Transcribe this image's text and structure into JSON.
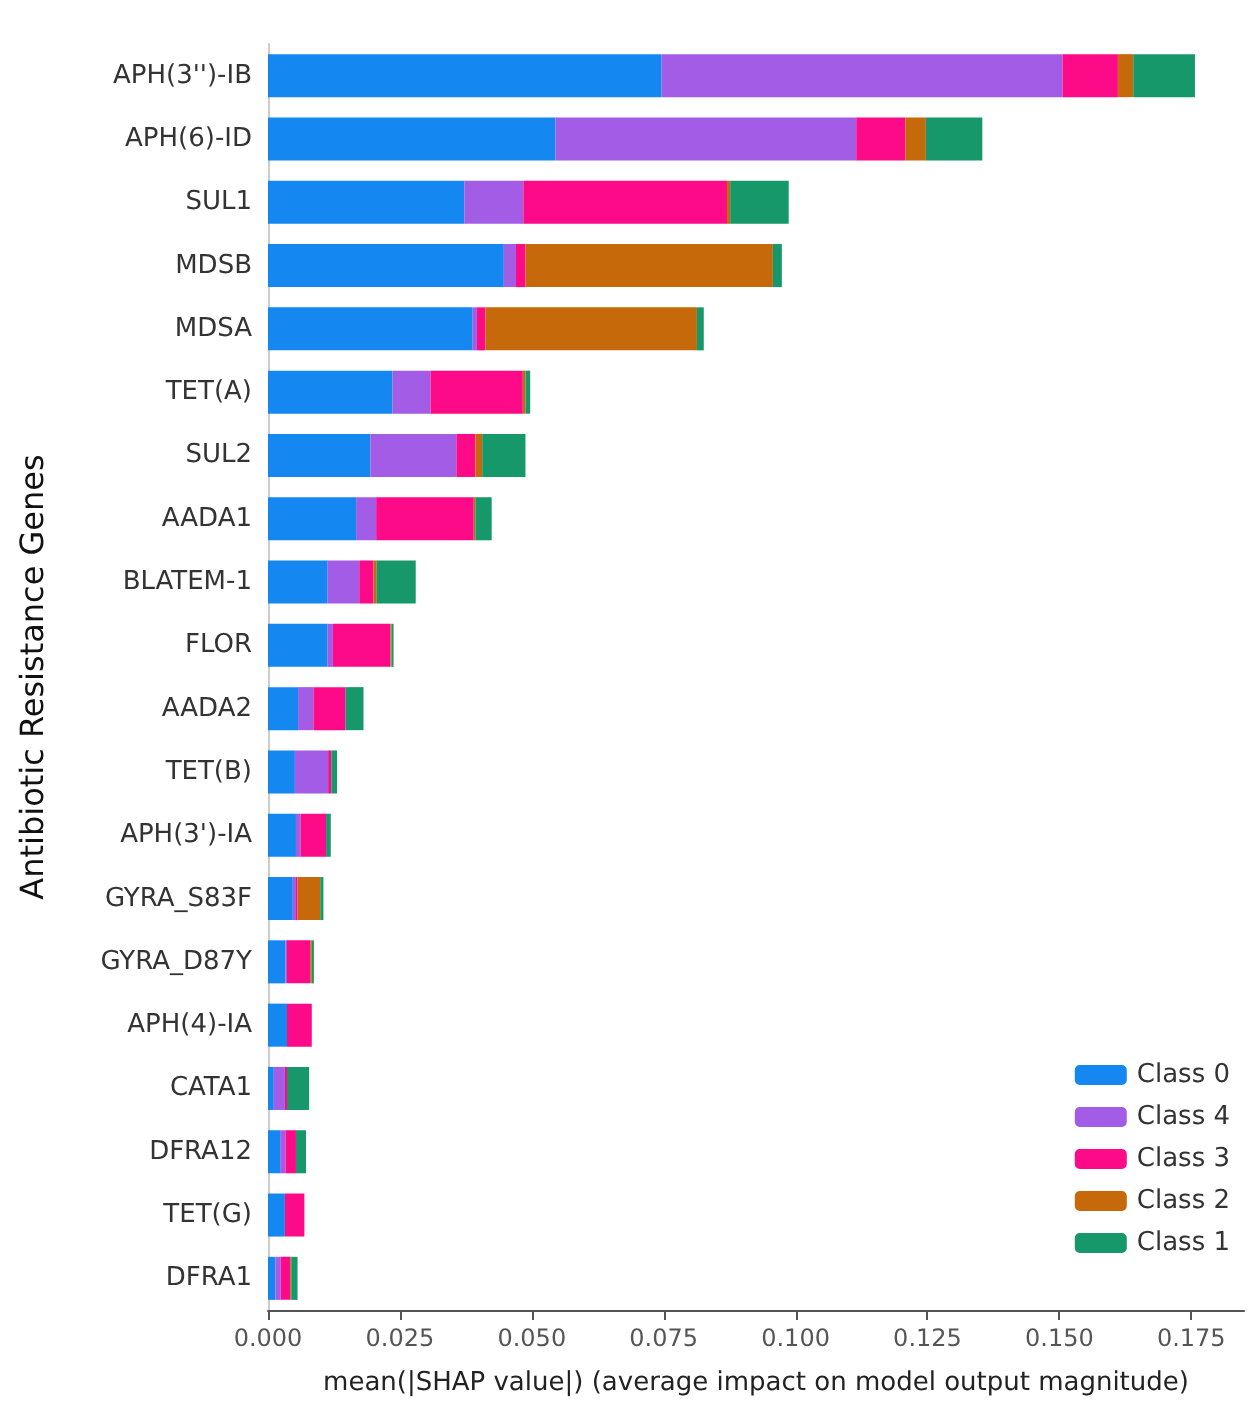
{
  "chart_data": {
    "type": "bar",
    "orientation": "horizontal",
    "stacked": true,
    "ylabel": "Antibiotic Resistance Genes",
    "xlabel": "mean(|SHAP value|) (average impact on model output magnitude)",
    "categories": [
      "APH(3'')-IB",
      "APH(6)-ID",
      "SUL1",
      "MDSB",
      "MDSA",
      "TET(A)",
      "SUL2",
      "AADA1",
      "BLATEM-1",
      "FLOR",
      "AADA2",
      "TET(B)",
      "APH(3')-IA",
      "GYRA_S83F",
      "GYRA_D87Y",
      "APH(4)-IA",
      "CATA1",
      "DFRA12",
      "TET(G)",
      "DFRA1"
    ],
    "series": [
      {
        "name": "Class 0",
        "color": "#1488f0",
        "values": [
          0.0746,
          0.0545,
          0.0372,
          0.0447,
          0.0388,
          0.0236,
          0.0194,
          0.0167,
          0.0113,
          0.0113,
          0.0057,
          0.0051,
          0.0053,
          0.0047,
          0.0033,
          0.0036,
          0.0011,
          0.0023,
          0.0032,
          0.0014
        ]
      },
      {
        "name": "Class 4",
        "color": "#a35ce6",
        "values": [
          0.076,
          0.057,
          0.0112,
          0.0023,
          0.0008,
          0.0072,
          0.0163,
          0.0038,
          0.006,
          0.001,
          0.0029,
          0.0063,
          0.0009,
          0.0006,
          0.0003,
          0,
          0.0021,
          0.001,
          0,
          0.001
        ]
      },
      {
        "name": "Class 3",
        "color": "#fd0a88",
        "values": [
          0.0105,
          0.0093,
          0.0386,
          0.0018,
          0.0016,
          0.0175,
          0.0036,
          0.0185,
          0.0027,
          0.0109,
          0.0061,
          0.0006,
          0.0048,
          0.0003,
          0.0044,
          0.0047,
          0.0004,
          0.002,
          0.0037,
          0.0018
        ]
      },
      {
        "name": "Class 2",
        "color": "#c5690b",
        "values": [
          0.0029,
          0.0039,
          0.0006,
          0.0469,
          0.0401,
          0.0005,
          0.0013,
          0.0003,
          0.0006,
          0.0002,
          0,
          0,
          0,
          0.0043,
          0.0003,
          0,
          0,
          0,
          0,
          0.0002
        ]
      },
      {
        "name": "Class 1",
        "color": "#16986a",
        "values": [
          0.0117,
          0.0107,
          0.0111,
          0.0017,
          0.0013,
          0.0009,
          0.0082,
          0.0031,
          0.0074,
          0.0004,
          0.0034,
          0.0011,
          0.0009,
          0.0006,
          0.0004,
          0,
          0.0042,
          0.0019,
          0,
          0.0012
        ]
      }
    ],
    "xlim": [
      0,
      0.185
    ],
    "xticks": [
      {
        "value": 0,
        "label": "0.000"
      },
      {
        "value": 0.025,
        "label": "0.025"
      },
      {
        "value": 0.05,
        "label": "0.050"
      },
      {
        "value": 0.075,
        "label": "0.075"
      },
      {
        "value": 0.1,
        "label": "0.100"
      },
      {
        "value": 0.125,
        "label": "0.125"
      },
      {
        "value": 0.15,
        "label": "0.150"
      },
      {
        "value": 0.175,
        "label": "0.175"
      }
    ],
    "grid": false,
    "legend": "bottom right"
  }
}
